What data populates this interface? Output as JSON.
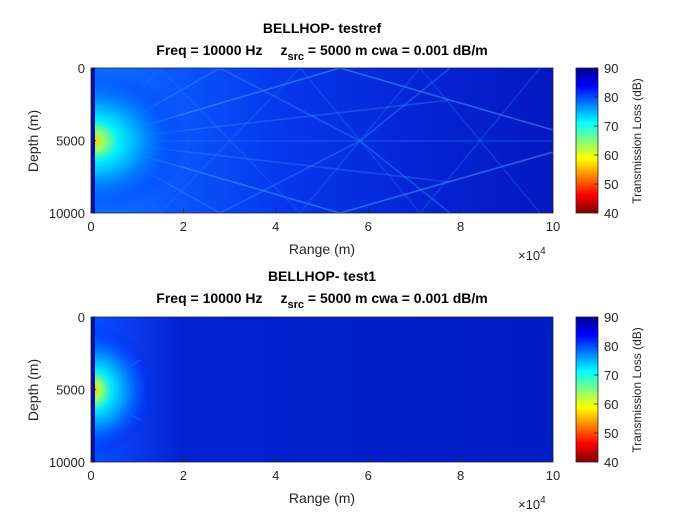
{
  "chart_data": [
    {
      "type": "heatmap",
      "title": "BELLHOP- testref",
      "subtitle": {
        "freq": "Freq = 10000 Hz",
        "z_prefix": "z",
        "z_sub": "src",
        "z_rest": " = 5000 m  cwa = 0.001 dB/m"
      },
      "xlabel": "Range (m)",
      "ylabel": "Depth (m)",
      "x_exponent": {
        "base": "×10",
        "exp": "4"
      },
      "x_ticks": [
        "0",
        "2",
        "4",
        "6",
        "8",
        "10"
      ],
      "y_ticks": [
        "0",
        "5000",
        "10000"
      ],
      "xlim": [
        0,
        100000
      ],
      "ylim": [
        0,
        10000
      ],
      "y_reversed": true,
      "colorbar": {
        "label": "Transmission Loss (dB)",
        "ticks": [
          "90",
          "80",
          "70",
          "60",
          "50",
          "40"
        ],
        "range": [
          40,
          90
        ],
        "reversed_jet": true
      },
      "source_depth": 5000,
      "pattern": "multipath",
      "near_field_extent": 12000
    },
    {
      "type": "heatmap",
      "title": "BELLHOP- test1",
      "subtitle": {
        "freq": "Freq = 10000 Hz",
        "z_prefix": "z",
        "z_sub": "src",
        "z_rest": " = 5000 m  cwa = 0.001 dB/m"
      },
      "xlabel": "Range (m)",
      "ylabel": "Depth (m)",
      "x_exponent": {
        "base": "×10",
        "exp": "4"
      },
      "x_ticks": [
        "0",
        "2",
        "4",
        "6",
        "8",
        "10"
      ],
      "y_ticks": [
        "0",
        "5000",
        "10000"
      ],
      "xlim": [
        0,
        100000
      ],
      "ylim": [
        0,
        10000
      ],
      "y_reversed": true,
      "colorbar": {
        "label": "Transmission Loss (dB)",
        "ticks": [
          "90",
          "80",
          "70",
          "60",
          "50",
          "40"
        ],
        "range": [
          40,
          90
        ],
        "reversed_jet": true
      },
      "source_depth": 5000,
      "pattern": "near-field",
      "near_field_extent": 10000
    }
  ]
}
